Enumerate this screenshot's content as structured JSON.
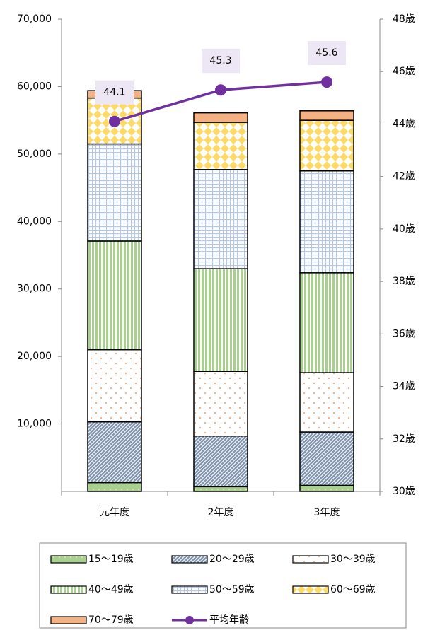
{
  "chart_data": {
    "type": "bar",
    "stacked": true,
    "categories": [
      "元年度",
      "2年度",
      "3年度"
    ],
    "series": [
      {
        "name": "15〜19歳",
        "color": "#a9d08e",
        "values": [
          1300,
          700,
          900
        ]
      },
      {
        "name": "20〜29歳",
        "color": "#8497b0",
        "values": [
          9000,
          7500,
          7900
        ]
      },
      {
        "name": "30〜39歳",
        "color": "#ed7d31",
        "values": [
          10700,
          9600,
          8800
        ]
      },
      {
        "name": "40〜49歳",
        "color": "#a9d08e",
        "values": [
          16100,
          15200,
          14800
        ]
      },
      {
        "name": "50〜59歳",
        "color": "#b4c7e7",
        "values": [
          14400,
          14700,
          15100
        ]
      },
      {
        "name": "60〜69歳",
        "color": "#ffd966",
        "values": [
          6800,
          7000,
          7500
        ]
      },
      {
        "name": "70〜79歳",
        "color": "#f4b183",
        "values": [
          1100,
          1400,
          1400
        ]
      },
      {
        "name": "平均年齢",
        "color": "#7030a0",
        "type": "line",
        "axis": "y2",
        "values": [
          44.1,
          45.3,
          45.6
        ]
      }
    ],
    "ylim": [
      0,
      70000
    ],
    "yticks": [
      {
        "value": 10000,
        "label": "10,000"
      },
      {
        "value": 20000,
        "label": "20,000"
      },
      {
        "value": 30000,
        "label": "30,000"
      },
      {
        "value": 40000,
        "label": "40,000"
      },
      {
        "value": 50000,
        "label": "50,000"
      },
      {
        "value": 60000,
        "label": "60,000"
      },
      {
        "value": 70000,
        "label": "70,000"
      }
    ],
    "y2lim": [
      30,
      48
    ],
    "y2ticks": [
      {
        "value": 30,
        "label": "30歳"
      },
      {
        "value": 32,
        "label": "32歳"
      },
      {
        "value": 34,
        "label": "34歳"
      },
      {
        "value": 36,
        "label": "36歳"
      },
      {
        "value": 38,
        "label": "38歳"
      },
      {
        "value": 40,
        "label": "40歳"
      },
      {
        "value": 42,
        "label": "42歳"
      },
      {
        "value": 44,
        "label": "44歳"
      },
      {
        "value": 46,
        "label": "46歳"
      },
      {
        "value": 48,
        "label": "48歳"
      }
    ],
    "legend": "bottom"
  }
}
